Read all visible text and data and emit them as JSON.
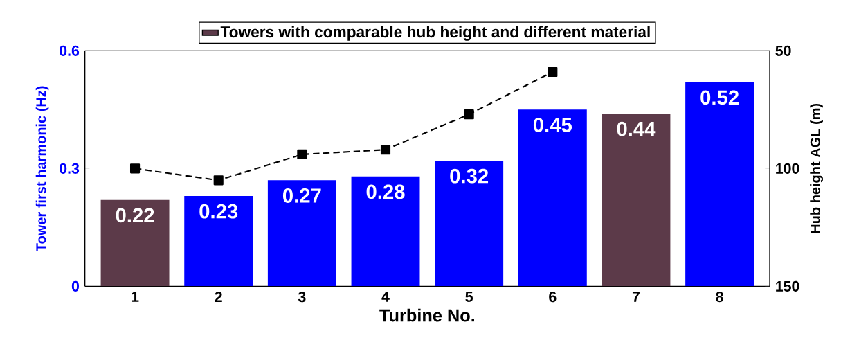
{
  "chart_data": {
    "type": "bar",
    "xlabel": "Turbine No.",
    "ylabel": "Tower first harmonic (Hz)",
    "y2label": "Hub height AGL (m)",
    "categories": [
      "1",
      "2",
      "3",
      "4",
      "5",
      "6",
      "7",
      "8"
    ],
    "series": [
      {
        "color": "#0000ff",
        "values": [
          null,
          0.23,
          0.27,
          0.28,
          0.32,
          0.45,
          null,
          0.52
        ],
        "value_labels": [
          null,
          "0.23",
          "0.27",
          "0.28",
          "0.32",
          "0.45",
          null,
          "0.52"
        ]
      },
      {
        "name": "Towers with comparable hub height and different material",
        "color": "#5c3a49",
        "values": [
          0.22,
          null,
          null,
          null,
          null,
          null,
          0.44,
          null
        ],
        "value_labels": [
          "0.22",
          null,
          null,
          null,
          null,
          null,
          "0.44",
          null
        ]
      },
      {
        "type": "line",
        "axis": "y2",
        "color": "#000000",
        "marker": "square",
        "line_style": "dashed",
        "values": [
          100,
          105,
          94,
          92,
          77,
          59,
          null,
          null
        ]
      }
    ],
    "ylim": [
      0,
      0.6
    ],
    "yticks": [
      0,
      0.3,
      0.6
    ],
    "y2lim": [
      150,
      50
    ],
    "y2ticks": [
      50,
      100,
      150
    ],
    "legend": "top",
    "grid": false
  }
}
